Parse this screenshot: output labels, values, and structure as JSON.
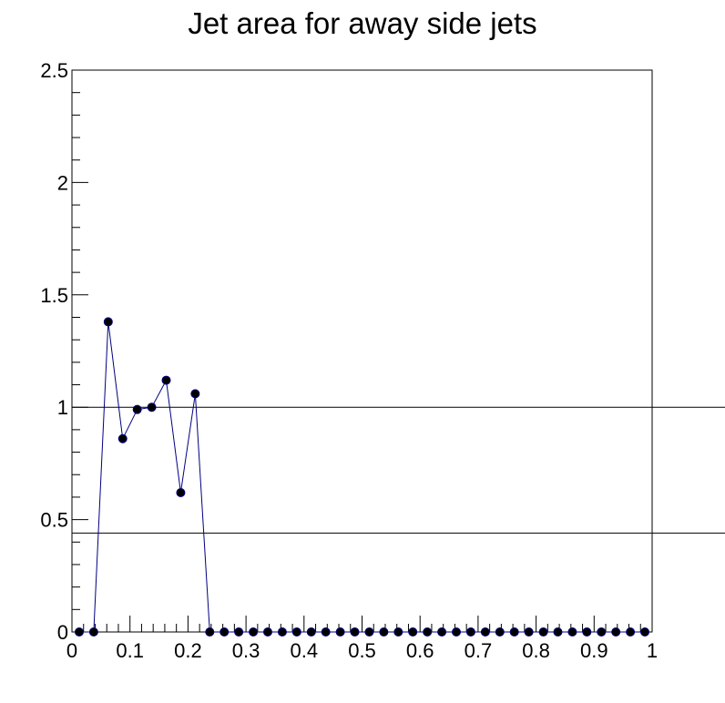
{
  "chart_data": {
    "type": "line",
    "title": "Jet area for away side jets",
    "xlabel": "",
    "ylabel": "",
    "xlim": [
      0,
      1
    ],
    "ylim": [
      0,
      2.5
    ],
    "x_ticks": [
      "0",
      "0.1",
      "0.2",
      "0.3",
      "0.4",
      "0.5",
      "0.6",
      "0.7",
      "0.8",
      "0.9",
      "1"
    ],
    "y_ticks": [
      "0",
      "0.5",
      "1",
      "1.5",
      "2",
      "2.5"
    ],
    "grid": false,
    "legend": "none",
    "reference_lines": [
      {
        "orientation": "horizontal",
        "y": 1.0
      },
      {
        "orientation": "horizontal",
        "y": 0.44
      }
    ],
    "line_color": "#000080",
    "marker_color": "#000000",
    "series": [
      {
        "x": [
          0.0125,
          0.0375,
          0.0625,
          0.0875,
          0.1125,
          0.1375,
          0.1625,
          0.1875,
          0.2125,
          0.2375,
          0.2625,
          0.2875,
          0.3125,
          0.3375,
          0.3625,
          0.3875,
          0.4125,
          0.4375,
          0.4625,
          0.4875,
          0.5125,
          0.5375,
          0.5625,
          0.5875,
          0.6125,
          0.6375,
          0.6625,
          0.6875,
          0.7125,
          0.7375,
          0.7625,
          0.7875,
          0.8125,
          0.8375,
          0.8625,
          0.8875,
          0.9125,
          0.9375,
          0.9625,
          0.9875
        ],
        "y": [
          0,
          0,
          1.38,
          0.86,
          0.99,
          1.0,
          1.12,
          0.62,
          1.06,
          0,
          0,
          0,
          0,
          0,
          0,
          0,
          0,
          0,
          0,
          0,
          0,
          0,
          0,
          0,
          0,
          0,
          0,
          0,
          0,
          0,
          0,
          0,
          0,
          0,
          0,
          0,
          0,
          0,
          0,
          0
        ]
      }
    ]
  }
}
